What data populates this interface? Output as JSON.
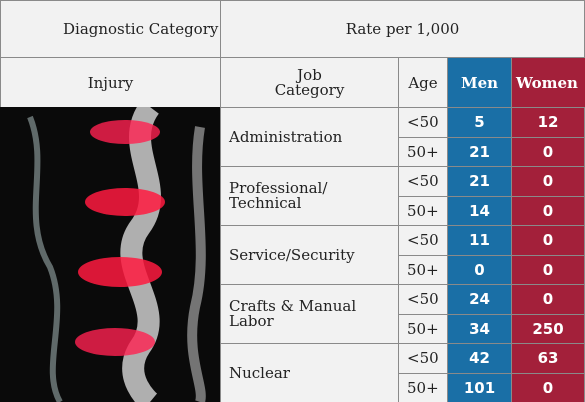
{
  "header": {
    "diagnostic_category": "Diagnostic Category",
    "rate": "Rate per 1,000",
    "injury": "Injury",
    "job_category": "Job Category",
    "age": "Age",
    "men": "Men",
    "women": "Women"
  },
  "groups": [
    {
      "category": "Administration",
      "rows": [
        {
          "age": "<50",
          "men": "5",
          "women": "12"
        },
        {
          "age": "50+",
          "men": "21",
          "women": "0"
        }
      ]
    },
    {
      "category": "Professional/ Technical",
      "rows": [
        {
          "age": "<50",
          "men": "21",
          "women": "0"
        },
        {
          "age": "50+",
          "men": "14",
          "women": "0"
        }
      ]
    },
    {
      "category": "Service/Security",
      "rows": [
        {
          "age": "<50",
          "men": "11",
          "women": "0"
        },
        {
          "age": "50+",
          "men": "0",
          "women": "0"
        }
      ]
    },
    {
      "category": "Crafts & Manual Labor",
      "rows": [
        {
          "age": "<50",
          "men": "24",
          "women": "0"
        },
        {
          "age": "50+",
          "men": "34",
          "women": "250"
        }
      ]
    },
    {
      "category": "Nuclear",
      "rows": [
        {
          "age": "<50",
          "men": "42",
          "women": "63"
        },
        {
          "age": "50+",
          "men": "101",
          "women": "0"
        }
      ]
    }
  ]
}
